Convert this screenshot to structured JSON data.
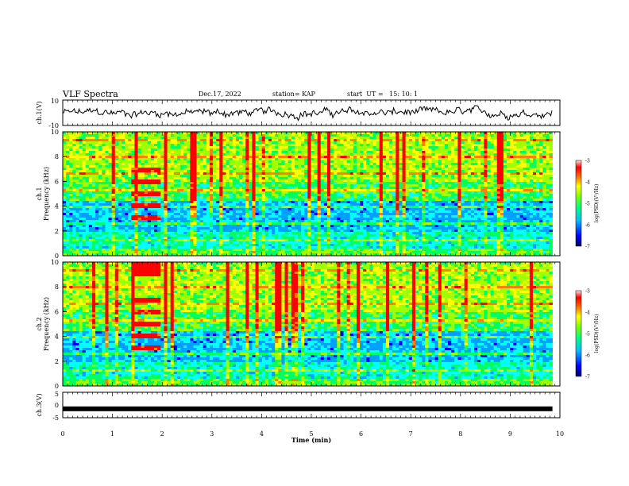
{
  "header": {
    "title": "VLF Spectra",
    "date": "Dec.17, 2022",
    "station": "station= KAP",
    "start_ut": "start  UT =   15: 10: 1"
  },
  "chart_data": [
    {
      "type": "line",
      "panel": "ch1-waveform",
      "ylabel": "ch.1(V)",
      "ylim": [
        -10,
        10
      ],
      "yticks": [
        "10",
        "-10"
      ],
      "xlim": [
        0,
        10
      ],
      "approx_level_V": 0
    },
    {
      "type": "heatmap",
      "panel": "ch1-spectrogram",
      "ylabel": "ch.1\nFrequency (kHz)",
      "ylabel_line1": "ch.1",
      "ylabel_line2": "Frequency (kHz)",
      "ylim": [
        0,
        10
      ],
      "yticks": [
        "0",
        "2",
        "4",
        "6",
        "8",
        "10"
      ],
      "xlim": [
        0,
        10
      ],
      "data_end_min": 9.85,
      "colorbar": {
        "label": "log(PSD)(V²/Hz)",
        "range": [
          -7,
          -3
        ],
        "ticks": [
          "-3",
          "-4",
          "-5",
          "-6",
          "-7"
        ]
      }
    },
    {
      "type": "heatmap",
      "panel": "ch2-spectrogram",
      "ylabel_line1": "ch.2",
      "ylabel_line2": "Frequency (kHz)",
      "ylim": [
        0,
        10
      ],
      "yticks": [
        "0",
        "2",
        "4",
        "6",
        "8",
        "10"
      ],
      "xlim": [
        0,
        10
      ],
      "data_end_min": 9.85,
      "colorbar": {
        "label": "log(PSD)(V²/Hz)",
        "range": [
          -7,
          -3
        ],
        "ticks": [
          "-3",
          "-4",
          "-5",
          "-6",
          "-7"
        ]
      }
    },
    {
      "type": "line",
      "panel": "ch3-waveform",
      "ylabel": "ch.3(V)",
      "ylim": [
        -5,
        5
      ],
      "yticks": [
        "5",
        "0",
        "-5"
      ],
      "xlim": [
        0,
        10
      ],
      "approx_level_V": -1.5
    }
  ],
  "xaxis": {
    "label": "Time (min)",
    "ticks": [
      "0",
      "1",
      "2",
      "3",
      "4",
      "5",
      "6",
      "7",
      "8",
      "9",
      "10"
    ]
  },
  "colors": {
    "colormap": [
      "#000080",
      "#0000ff",
      "#00a0ff",
      "#00ffff",
      "#00ff60",
      "#a0ff00",
      "#ffff00",
      "#ff8000",
      "#ff0000",
      "#ffffff"
    ]
  }
}
